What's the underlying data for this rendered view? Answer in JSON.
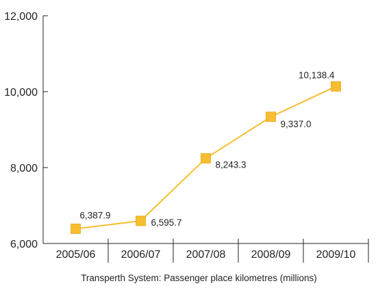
{
  "chart_data": {
    "type": "line",
    "title": "",
    "xlabel": "Transperth System: Passenger place kilometres (millions)",
    "ylabel": "",
    "categories": [
      "2005/06",
      "2006/07",
      "2007/08",
      "2008/09",
      "2009/10"
    ],
    "values": [
      6387.9,
      6595.7,
      8243.3,
      9337.0,
      10138.4
    ],
    "value_labels": [
      "6,387.9",
      "6,595.7",
      "8,243.3",
      "9,337.0",
      "10,138.4"
    ],
    "ylim": [
      6000,
      12000
    ],
    "yticks": [
      6000,
      8000,
      10000,
      12000
    ],
    "ytick_labels": [
      "6,000",
      "8,000",
      "10,000",
      "12,000"
    ],
    "grid": false,
    "legend": "none",
    "line_color": "#F6BE30",
    "marker_color": "#F6BE30",
    "marker_shape": "square"
  }
}
